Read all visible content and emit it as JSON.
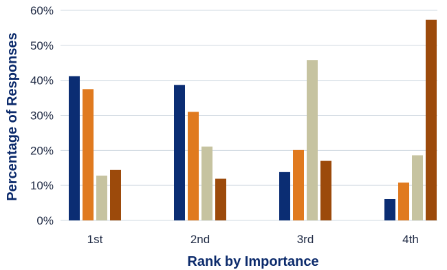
{
  "chart_data": {
    "type": "bar",
    "title": "",
    "xlabel": "Rank by Importance",
    "ylabel": "Percentage of Responses",
    "categories": [
      "1st",
      "2nd",
      "3rd",
      "4th"
    ],
    "ylim": [
      0,
      60
    ],
    "yticks": [
      "0%",
      "10%",
      "20%",
      "30%",
      "40%",
      "50%",
      "60%"
    ],
    "grid": true,
    "legend": "none",
    "series": [
      {
        "color": "#0b2d73",
        "values": [
          41.2,
          38.7,
          13.8,
          6.1
        ]
      },
      {
        "color": "#e07a1f",
        "values": [
          37.5,
          31.0,
          20.1,
          10.8
        ]
      },
      {
        "color": "#c6c3a0",
        "values": [
          12.8,
          21.1,
          45.8,
          18.6
        ]
      },
      {
        "color": "#9c4a0b",
        "values": [
          14.4,
          11.9,
          17.0,
          57.3
        ]
      }
    ]
  },
  "colors": {
    "grid": "#cfd8e0",
    "axis_text": "#1f2a44",
    "axis_title": "#0b2a6b"
  }
}
